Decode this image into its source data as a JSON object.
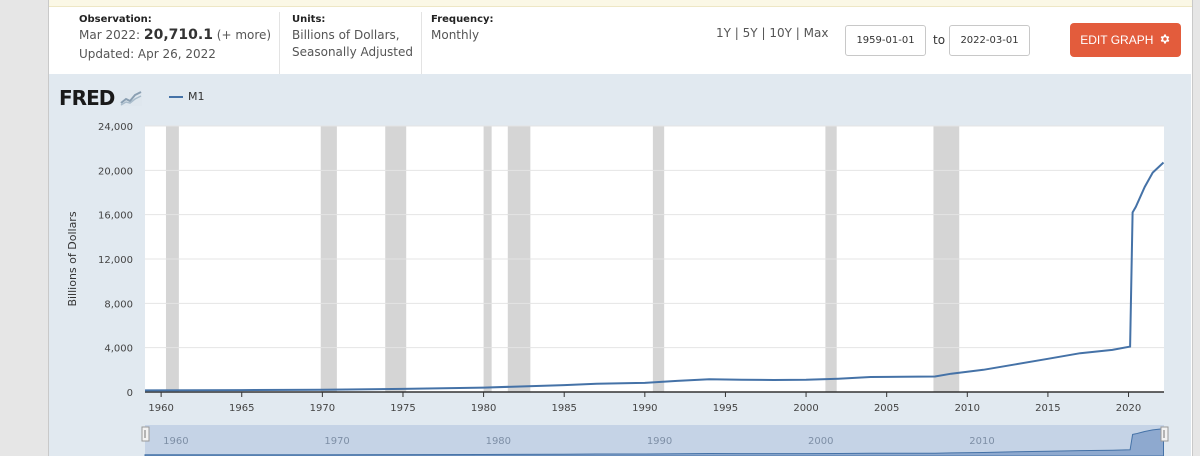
{
  "meta": {
    "observation_label": "Observation:",
    "observation_date": "Mar 2022:",
    "observation_value": "20,710.1",
    "observation_more": "(+ more)",
    "updated": "Updated: Apr 26, 2022",
    "units_label": "Units:",
    "units_line1": "Billions of Dollars,",
    "units_line2": "Seasonally Adjusted",
    "frequency_label": "Frequency:",
    "frequency_value": "Monthly"
  },
  "controls": {
    "range_1y": "1Y",
    "range_5y": "5Y",
    "range_10y": "10Y",
    "range_max": "Max",
    "separator": "|",
    "start_date": "1959-01-01",
    "to_label": "to",
    "end_date": "2022-03-01",
    "edit_graph": "EDIT GRAPH",
    "edit_icon": "gear-icon"
  },
  "logo": "FRED",
  "colors": {
    "line": "#4572a7",
    "recession": "#d5d5d5",
    "edit_button": "#e35c3c"
  },
  "chart_data": {
    "type": "line",
    "series": [
      {
        "name": "M1",
        "x": [
          1959,
          1965,
          1970,
          1975,
          1980,
          1985,
          1987,
          1990,
          1992,
          1994,
          1996,
          1998,
          2000,
          2002,
          2004,
          2006,
          2008,
          2009,
          2011,
          2013,
          2015,
          2017,
          2019,
          2020.1,
          2020.25,
          2020.45,
          2021,
          2021.5,
          2022.17
        ],
        "values": [
          140,
          170,
          210,
          280,
          400,
          620,
          750,
          820,
          1000,
          1150,
          1110,
          1080,
          1100,
          1200,
          1350,
          1380,
          1400,
          1650,
          2000,
          2500,
          3000,
          3500,
          3800,
          4100,
          16200,
          16700,
          18500,
          19800,
          20710
        ]
      }
    ],
    "xlim": [
      1959,
      2022.2
    ],
    "ylim": [
      0,
      24000
    ],
    "ylabel": "Billions of Dollars",
    "yticks": [
      0,
      4000,
      8000,
      12000,
      16000,
      20000,
      24000
    ],
    "ytick_labels": [
      "0",
      "4,000",
      "8,000",
      "12,000",
      "16,000",
      "20,000",
      "24,000"
    ],
    "xticks": [
      1960,
      1965,
      1970,
      1975,
      1980,
      1985,
      1990,
      1995,
      2000,
      2005,
      2010,
      2015,
      2020
    ],
    "recessions": [
      [
        1960.3,
        1961.1
      ],
      [
        1969.9,
        1970.9
      ],
      [
        1973.9,
        1975.2
      ],
      [
        1980.0,
        1980.5
      ],
      [
        1981.5,
        1982.9
      ],
      [
        1990.5,
        1991.2
      ],
      [
        2001.2,
        2001.9
      ],
      [
        2007.9,
        2009.5
      ]
    ],
    "navigator_ticks": [
      1960,
      1970,
      1980,
      1990,
      2000,
      2010
    ],
    "grid": true
  }
}
